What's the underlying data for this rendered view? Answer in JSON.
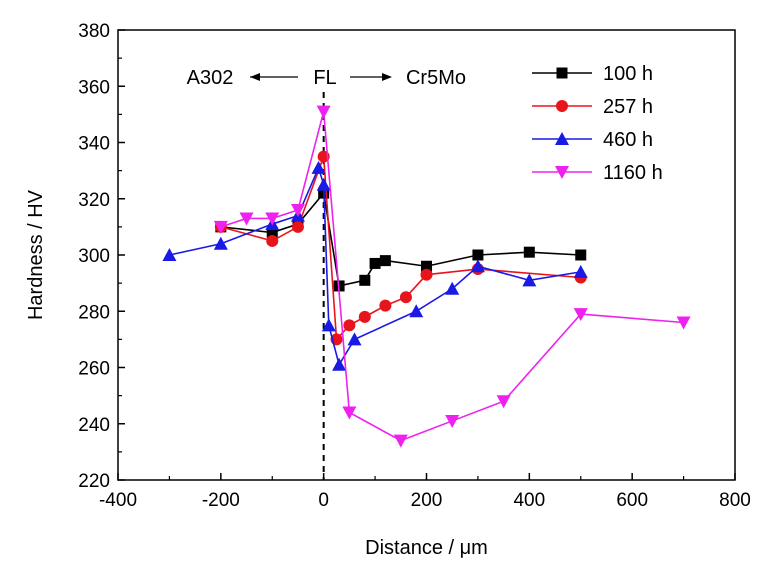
{
  "chart_data": {
    "type": "line",
    "title": "",
    "xlabel": "Distance / μm",
    "ylabel": "Hardness / HV",
    "xlim": [
      -400,
      800
    ],
    "ylim": [
      220,
      380
    ],
    "xticks": [
      -400,
      -200,
      0,
      200,
      400,
      600,
      800
    ],
    "yticks": [
      220,
      240,
      260,
      280,
      300,
      320,
      340,
      360,
      380
    ],
    "grid": false,
    "legend_position": "top-right",
    "fusion_line_x": 0,
    "annotations": {
      "left": "A302",
      "center": "FL",
      "right": "Cr5Mo"
    },
    "series": [
      {
        "name": "100 h",
        "color": "#000000",
        "marker": "square",
        "x": [
          -200,
          -100,
          -50,
          0,
          30,
          80,
          100,
          120,
          200,
          300,
          400,
          500
        ],
        "y": [
          310,
          308,
          311,
          322,
          289,
          291,
          297,
          298,
          296,
          300,
          301,
          300
        ]
      },
      {
        "name": "257 h",
        "color": "#e8141b",
        "marker": "circle",
        "x": [
          -200,
          -100,
          -50,
          0,
          25,
          50,
          80,
          120,
          160,
          200,
          300,
          500
        ],
        "y": [
          310,
          305,
          310,
          335,
          270,
          275,
          278,
          282,
          285,
          293,
          295,
          292
        ]
      },
      {
        "name": "460 h",
        "color": "#1a1ae6",
        "marker": "triangle-up",
        "x": [
          -300,
          -200,
          -100,
          -50,
          -10,
          0,
          10,
          30,
          60,
          180,
          250,
          300,
          400,
          500
        ],
        "y": [
          300,
          304,
          311,
          314,
          331,
          325,
          275,
          261,
          270,
          280,
          288,
          296,
          291,
          294
        ]
      },
      {
        "name": "1160 h",
        "color": "#ee22ee",
        "marker": "triangle-down",
        "x": [
          -200,
          -150,
          -100,
          -50,
          0,
          50,
          150,
          250,
          350,
          500,
          700
        ],
        "y": [
          310,
          313,
          313,
          316,
          351,
          244,
          234,
          241,
          248,
          279,
          276
        ]
      }
    ]
  }
}
